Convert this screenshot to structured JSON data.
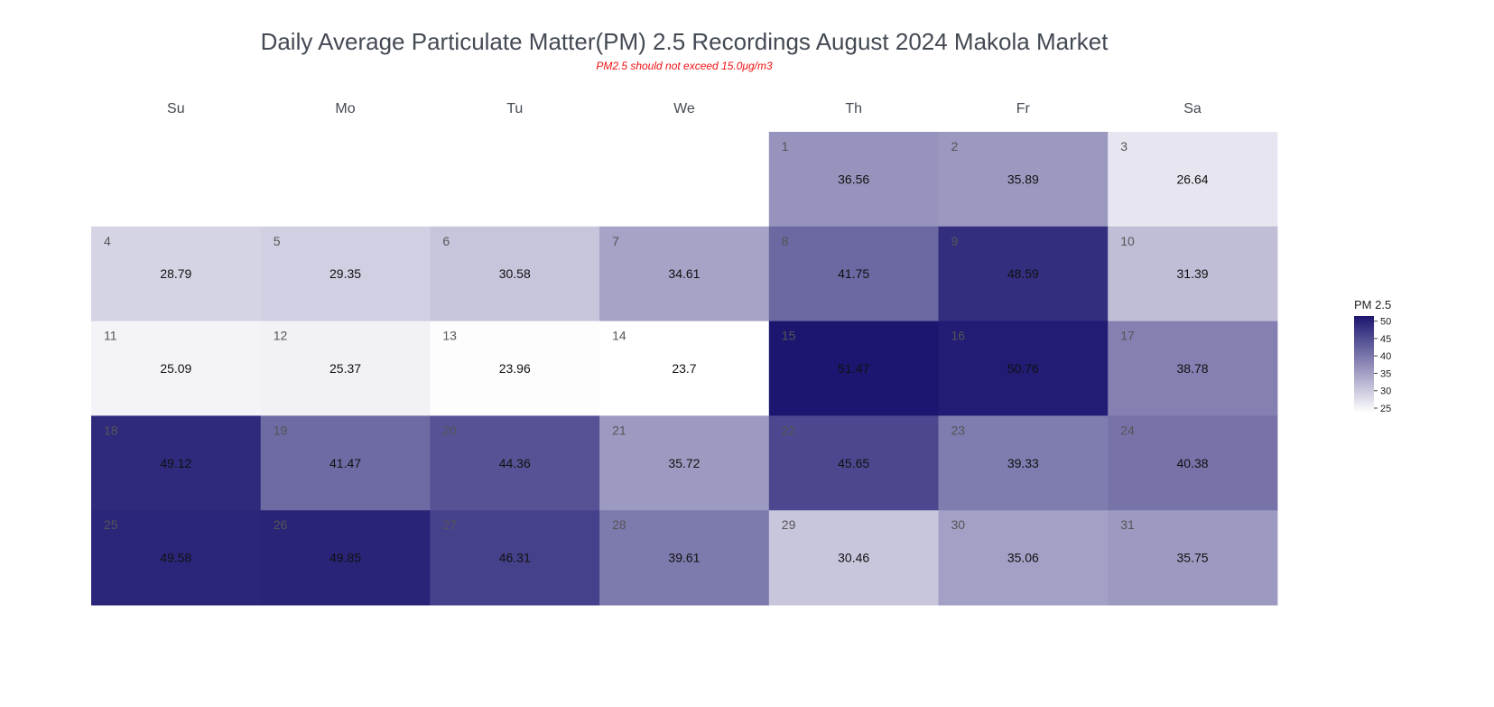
{
  "chart_data": {
    "type": "heatmap",
    "title": "Daily Average Particulate Matter(PM) 2.5 Recordings August 2024 Makola Market",
    "subtitle": "PM2.5 should not exceed 15.0μg/m3",
    "weekdays": [
      "Su",
      "Mo",
      "Tu",
      "We",
      "Th",
      "Fr",
      "Sa"
    ],
    "first_weekday_index": 4,
    "days": [
      1,
      2,
      3,
      4,
      5,
      6,
      7,
      8,
      9,
      10,
      11,
      12,
      13,
      14,
      15,
      16,
      17,
      18,
      19,
      20,
      21,
      22,
      23,
      24,
      25,
      26,
      27,
      28,
      29,
      30,
      31
    ],
    "values": [
      36.56,
      35.89,
      26.64,
      28.79,
      29.35,
      30.58,
      34.61,
      41.75,
      48.59,
      31.39,
      25.09,
      25.37,
      23.96,
      23.7,
      51.47,
      50.76,
      38.78,
      49.12,
      41.47,
      44.36,
      35.72,
      45.65,
      39.33,
      40.38,
      49.58,
      49.85,
      46.31,
      39.61,
      30.46,
      35.06,
      35.75
    ],
    "value_labels": [
      "36.56",
      "35.89",
      "26.64",
      "28.79",
      "29.35",
      "30.58",
      "34.61",
      "41.75",
      "48.59",
      "31.39",
      "25.09",
      "25.37",
      "23.96",
      "23.7",
      "51.47",
      "50.76",
      "38.78",
      "49.12",
      "41.47",
      "44.36",
      "35.72",
      "45.65",
      "39.33",
      "40.38",
      "49.58",
      "49.85",
      "46.31",
      "39.61",
      "30.46",
      "35.06",
      "35.75"
    ],
    "colorscale": {
      "low_color": "#ffffff",
      "high_color": "#1c1670",
      "zmin": 23.7,
      "zmax": 51.47
    },
    "legend": {
      "title": "PM 2.5",
      "ticks": [
        50,
        45,
        40,
        35,
        30,
        25
      ],
      "placement": "right"
    }
  }
}
